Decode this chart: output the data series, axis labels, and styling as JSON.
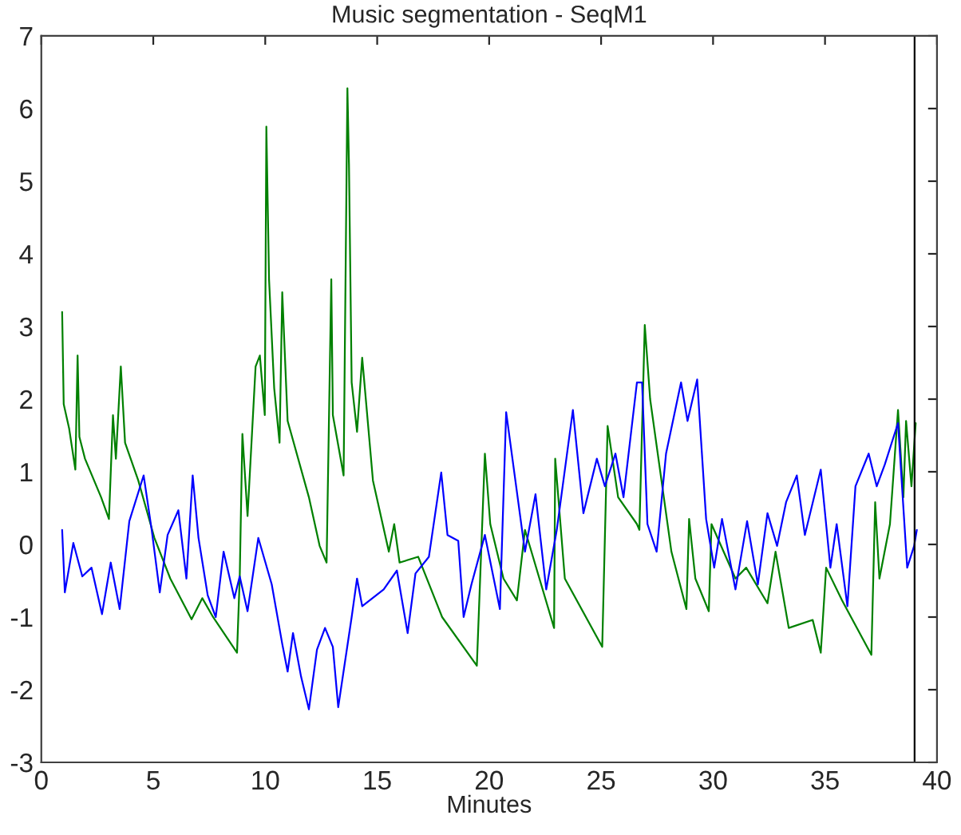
{
  "chart_data": {
    "type": "line",
    "title": "Music segmentation - SeqM1",
    "xlabel": "Minutes",
    "xlim": [
      0,
      40
    ],
    "xticks": [
      0,
      5,
      10,
      15,
      20,
      25,
      30,
      35,
      40
    ],
    "ylim": [
      -3,
      7
    ],
    "yticks": [
      -3,
      -2,
      -1,
      0,
      1,
      2,
      3,
      4,
      5,
      6,
      7
    ],
    "grid": false,
    "legend": false,
    "marker": "none",
    "line_style": "solid",
    "ref_lines": [
      {
        "axis": "x",
        "value": 39,
        "color": "#000000"
      }
    ],
    "series": [
      {
        "color": "#008000",
        "x": [
          0.93,
          1.0,
          1.24,
          1.52,
          1.62,
          1.7,
          1.95,
          2.67,
          3.02,
          3.2,
          3.33,
          3.55,
          3.74,
          4.33,
          5.05,
          5.76,
          6.71,
          7.19,
          7.67,
          8.74,
          8.86,
          8.98,
          9.21,
          9.57,
          9.76,
          9.98,
          10.05,
          10.17,
          10.4,
          10.64,
          10.76,
          11.0,
          11.95,
          12.43,
          12.74,
          12.95,
          13.02,
          13.5,
          13.67,
          13.74,
          13.86,
          14.1,
          14.33,
          14.81,
          15.52,
          15.76,
          16.0,
          16.83,
          17.9,
          19.45,
          19.81,
          20.05,
          20.64,
          21.24,
          21.6,
          22.9,
          22.95,
          23.38,
          25.05,
          25.29,
          25.76,
          26.6,
          26.71,
          26.95,
          27.19,
          28.14,
          28.81,
          28.93,
          29.21,
          29.81,
          29.93,
          31.0,
          31.48,
          32.43,
          32.79,
          33.38,
          34.45,
          34.81,
          35.05,
          35.76,
          37.07,
          37.24,
          37.43,
          37.9,
          38.26,
          38.5,
          38.62,
          38.86,
          39.05
        ],
        "values": [
          3.2,
          1.93,
          1.6,
          1.03,
          2.6,
          1.48,
          1.18,
          0.65,
          0.35,
          1.78,
          1.18,
          2.45,
          1.4,
          0.88,
          0.09,
          -0.47,
          -1.03,
          -0.74,
          -1.0,
          -1.49,
          -0.47,
          1.52,
          0.39,
          2.45,
          2.6,
          1.78,
          5.75,
          3.65,
          2.15,
          1.4,
          3.47,
          1.7,
          0.65,
          -0.02,
          -0.25,
          3.65,
          1.78,
          0.95,
          6.28,
          5.23,
          2.23,
          1.55,
          2.57,
          0.88,
          -0.1,
          0.28,
          -0.25,
          -0.17,
          -1.0,
          -1.67,
          1.25,
          0.28,
          -0.47,
          -0.77,
          0.2,
          -1.15,
          1.18,
          -0.47,
          -1.41,
          1.63,
          0.65,
          0.28,
          0.2,
          3.02,
          2.0,
          -0.1,
          -0.89,
          0.35,
          -0.47,
          -0.92,
          0.28,
          -0.47,
          -0.32,
          -0.81,
          -0.1,
          -1.15,
          -1.04,
          -1.49,
          -0.32,
          -0.77,
          -1.52,
          0.58,
          -0.47,
          0.28,
          1.85,
          0.65,
          1.7,
          0.8,
          1.67
        ]
      },
      {
        "color": "#0000ff",
        "x": [
          0.93,
          1.05,
          1.43,
          1.83,
          2.24,
          2.71,
          3.1,
          3.5,
          3.93,
          4.57,
          4.93,
          5.29,
          5.64,
          6.12,
          6.48,
          6.76,
          7.02,
          7.43,
          7.79,
          8.14,
          8.62,
          8.86,
          9.21,
          9.69,
          10.29,
          10.76,
          11.0,
          11.24,
          11.6,
          11.95,
          12.31,
          12.67,
          13.02,
          13.26,
          13.86,
          14.1,
          14.33,
          15.29,
          15.88,
          16.36,
          16.71,
          17.31,
          17.86,
          18.14,
          18.62,
          18.86,
          19.21,
          19.81,
          20.48,
          20.76,
          21.6,
          22.07,
          22.55,
          23.02,
          23.74,
          24.21,
          24.81,
          25.17,
          25.64,
          26.0,
          26.6,
          26.83,
          27.07,
          27.48,
          27.9,
          28.57,
          28.86,
          29.29,
          29.69,
          30.05,
          30.4,
          31.0,
          31.52,
          32.0,
          32.43,
          32.86,
          33.26,
          33.74,
          34.1,
          34.81,
          35.24,
          35.52,
          36.0,
          36.36,
          36.95,
          37.31,
          37.67,
          38.26,
          38.67,
          38.98,
          39.1
        ],
        "values": [
          0.2,
          -0.66,
          0.02,
          -0.44,
          -0.32,
          -0.96,
          -0.25,
          -0.89,
          0.32,
          0.95,
          0.2,
          -0.66,
          0.13,
          0.47,
          -0.47,
          0.95,
          0.09,
          -0.7,
          -1.0,
          -0.1,
          -0.74,
          -0.44,
          -0.92,
          0.09,
          -0.55,
          -1.37,
          -1.75,
          -1.22,
          -1.82,
          -2.27,
          -1.45,
          -1.15,
          -1.41,
          -2.24,
          -1.0,
          -0.47,
          -0.85,
          -0.62,
          -0.36,
          -1.22,
          -0.4,
          -0.17,
          0.99,
          0.13,
          0.05,
          -1.0,
          -0.55,
          0.13,
          -0.89,
          1.82,
          -0.1,
          0.69,
          -0.62,
          0.2,
          1.85,
          0.43,
          1.18,
          0.8,
          1.25,
          0.65,
          2.23,
          2.23,
          0.28,
          -0.1,
          1.25,
          2.23,
          1.7,
          2.27,
          0.35,
          -0.32,
          0.35,
          -0.62,
          0.32,
          -0.55,
          0.43,
          -0.02,
          0.58,
          0.95,
          0.13,
          1.03,
          -0.32,
          0.28,
          -0.85,
          0.8,
          1.25,
          0.8,
          1.1,
          1.67,
          -0.32,
          -0.02,
          0.2
        ]
      }
    ]
  }
}
